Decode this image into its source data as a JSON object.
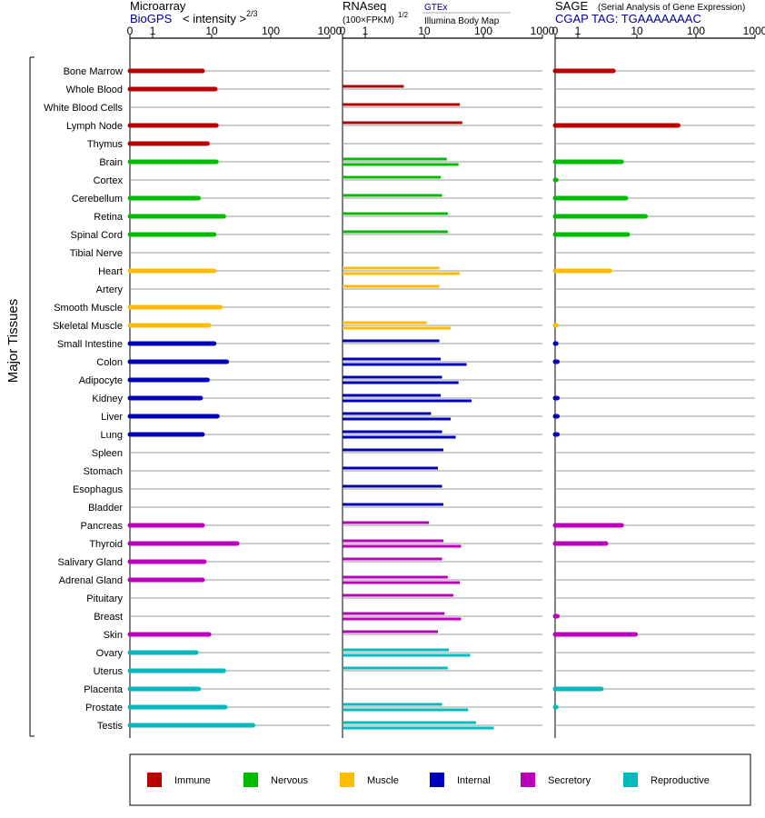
{
  "colors": {
    "Immune": "#bb0000",
    "Nervous": "#00bb00",
    "Muscle": "#ffbb00",
    "Internal": "#0000bb",
    "Secretory": "#bb00bb",
    "Reproductive": "#00bbbb"
  },
  "chart_data": {
    "type": "bar",
    "side_label": "Major Tissues",
    "ticks": [
      0,
      1,
      10,
      100,
      1000
    ],
    "categories": [
      "Bone Marrow",
      "Whole Blood",
      "White Blood Cells",
      "Lymph Node",
      "Thymus",
      "Brain",
      "Cortex",
      "Cerebellum",
      "Retina",
      "Spinal Cord",
      "Tibial Nerve",
      "Heart",
      "Artery",
      "Smooth Muscle",
      "Skeletal Muscle",
      "Small Intestine",
      "Colon",
      "Adipocyte",
      "Kidney",
      "Liver",
      "Lung",
      "Spleen",
      "Stomach",
      "Esophagus",
      "Bladder",
      "Pancreas",
      "Thyroid",
      "Salivary Gland",
      "Adrenal Gland",
      "Pituitary",
      "Breast",
      "Skin",
      "Ovary",
      "Uterus",
      "Placenta",
      "Prostate",
      "Testis"
    ],
    "groups": [
      "Immune",
      "Immune",
      "Immune",
      "Immune",
      "Immune",
      "Nervous",
      "Nervous",
      "Nervous",
      "Nervous",
      "Nervous",
      "Nervous",
      "Muscle",
      "Muscle",
      "Muscle",
      "Muscle",
      "Internal",
      "Internal",
      "Internal",
      "Internal",
      "Internal",
      "Internal",
      "Internal",
      "Internal",
      "Internal",
      "Internal",
      "Secretory",
      "Secretory",
      "Secretory",
      "Secretory",
      "Secretory",
      "Secretory",
      "Secretory",
      "Reproductive",
      "Reproductive",
      "Reproductive",
      "Reproductive",
      "Reproductive"
    ],
    "legend": [
      "Immune",
      "Nervous",
      "Muscle",
      "Internal",
      "Secretory",
      "Reproductive"
    ],
    "panels": [
      {
        "name": "Microarray",
        "subtitle": "BioGPS",
        "scale_note": "< intensity >",
        "scale_exp": "2/3",
        "values": [
          7,
          11.5,
          null,
          12,
          8.5,
          12,
          null,
          6,
          16,
          11,
          null,
          11,
          null,
          14,
          9,
          11,
          18,
          8.5,
          6.5,
          12.5,
          7,
          null,
          null,
          null,
          null,
          7,
          27,
          7.5,
          7,
          null,
          null,
          9,
          5.5,
          16,
          6,
          17,
          50
        ]
      },
      {
        "name": "RNAseq",
        "scale_note": "(100×FPKM)",
        "scale_exp": "1/2",
        "source": "GTEx",
        "source_sub": "Illumina Body Map",
        "values_gtex": [
          null,
          4.5,
          40,
          44,
          null,
          24,
          19,
          20,
          25,
          25,
          null,
          18,
          18,
          null,
          11,
          18,
          19,
          20,
          19,
          13,
          20,
          21,
          17,
          20,
          21,
          12,
          21,
          20,
          25,
          31,
          22,
          17,
          26,
          25,
          null,
          20,
          75
        ],
        "values_bodymap": [
          null,
          null,
          null,
          null,
          null,
          38,
          null,
          null,
          null,
          null,
          null,
          40,
          null,
          null,
          28,
          null,
          52,
          38,
          63,
          28,
          34,
          null,
          null,
          null,
          null,
          null,
          42,
          null,
          40,
          null,
          42,
          null,
          60,
          null,
          null,
          55,
          150
        ]
      },
      {
        "name": "SAGE",
        "subtitle_note": "(Serial Analysis of Gene Expression)",
        "subtitle": "CGAP TAG: TGAAAAAAAC",
        "values": [
          4,
          null,
          null,
          50,
          null,
          5.5,
          0.05,
          6.5,
          14,
          7,
          null,
          3.5,
          null,
          null,
          0.05,
          0.05,
          0.1,
          null,
          0.1,
          0.1,
          0.1,
          null,
          null,
          null,
          null,
          5.5,
          3,
          null,
          null,
          null,
          0.1,
          9.5,
          null,
          null,
          2.5,
          0.05,
          null
        ]
      }
    ]
  }
}
